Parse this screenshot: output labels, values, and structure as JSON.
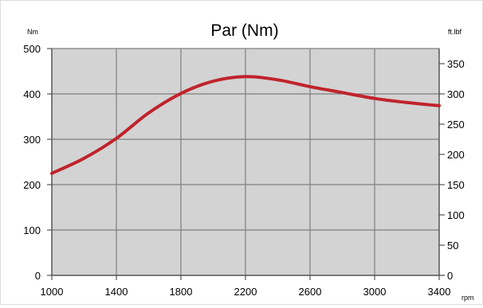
{
  "chart_data": {
    "type": "line",
    "title": "Par (Nm)",
    "left_unit": "Nm",
    "right_unit": "ft.lbf",
    "x_unit": "rpm",
    "xlim": [
      1000,
      3400
    ],
    "ylim": [
      0,
      500
    ],
    "y2lim": [
      0,
      375
    ],
    "x_ticks": [
      1000,
      1400,
      1800,
      2200,
      2600,
      3000,
      3400
    ],
    "y_ticks": [
      0,
      100,
      200,
      300,
      400,
      500
    ],
    "y2_ticks": [
      0,
      50,
      100,
      150,
      200,
      250,
      300,
      350
    ],
    "grid": true,
    "plot_background": "#d3d3d3",
    "series": [
      {
        "color": "#c0232c",
        "x": [
          1000,
          1200,
          1400,
          1600,
          1800,
          2000,
          2200,
          2400,
          2600,
          2800,
          3000,
          3200,
          3400
        ],
        "y": [
          225,
          258,
          302,
          358,
          401,
          428,
          438,
          431,
          416,
          403,
          390,
          381,
          374
        ]
      }
    ]
  }
}
